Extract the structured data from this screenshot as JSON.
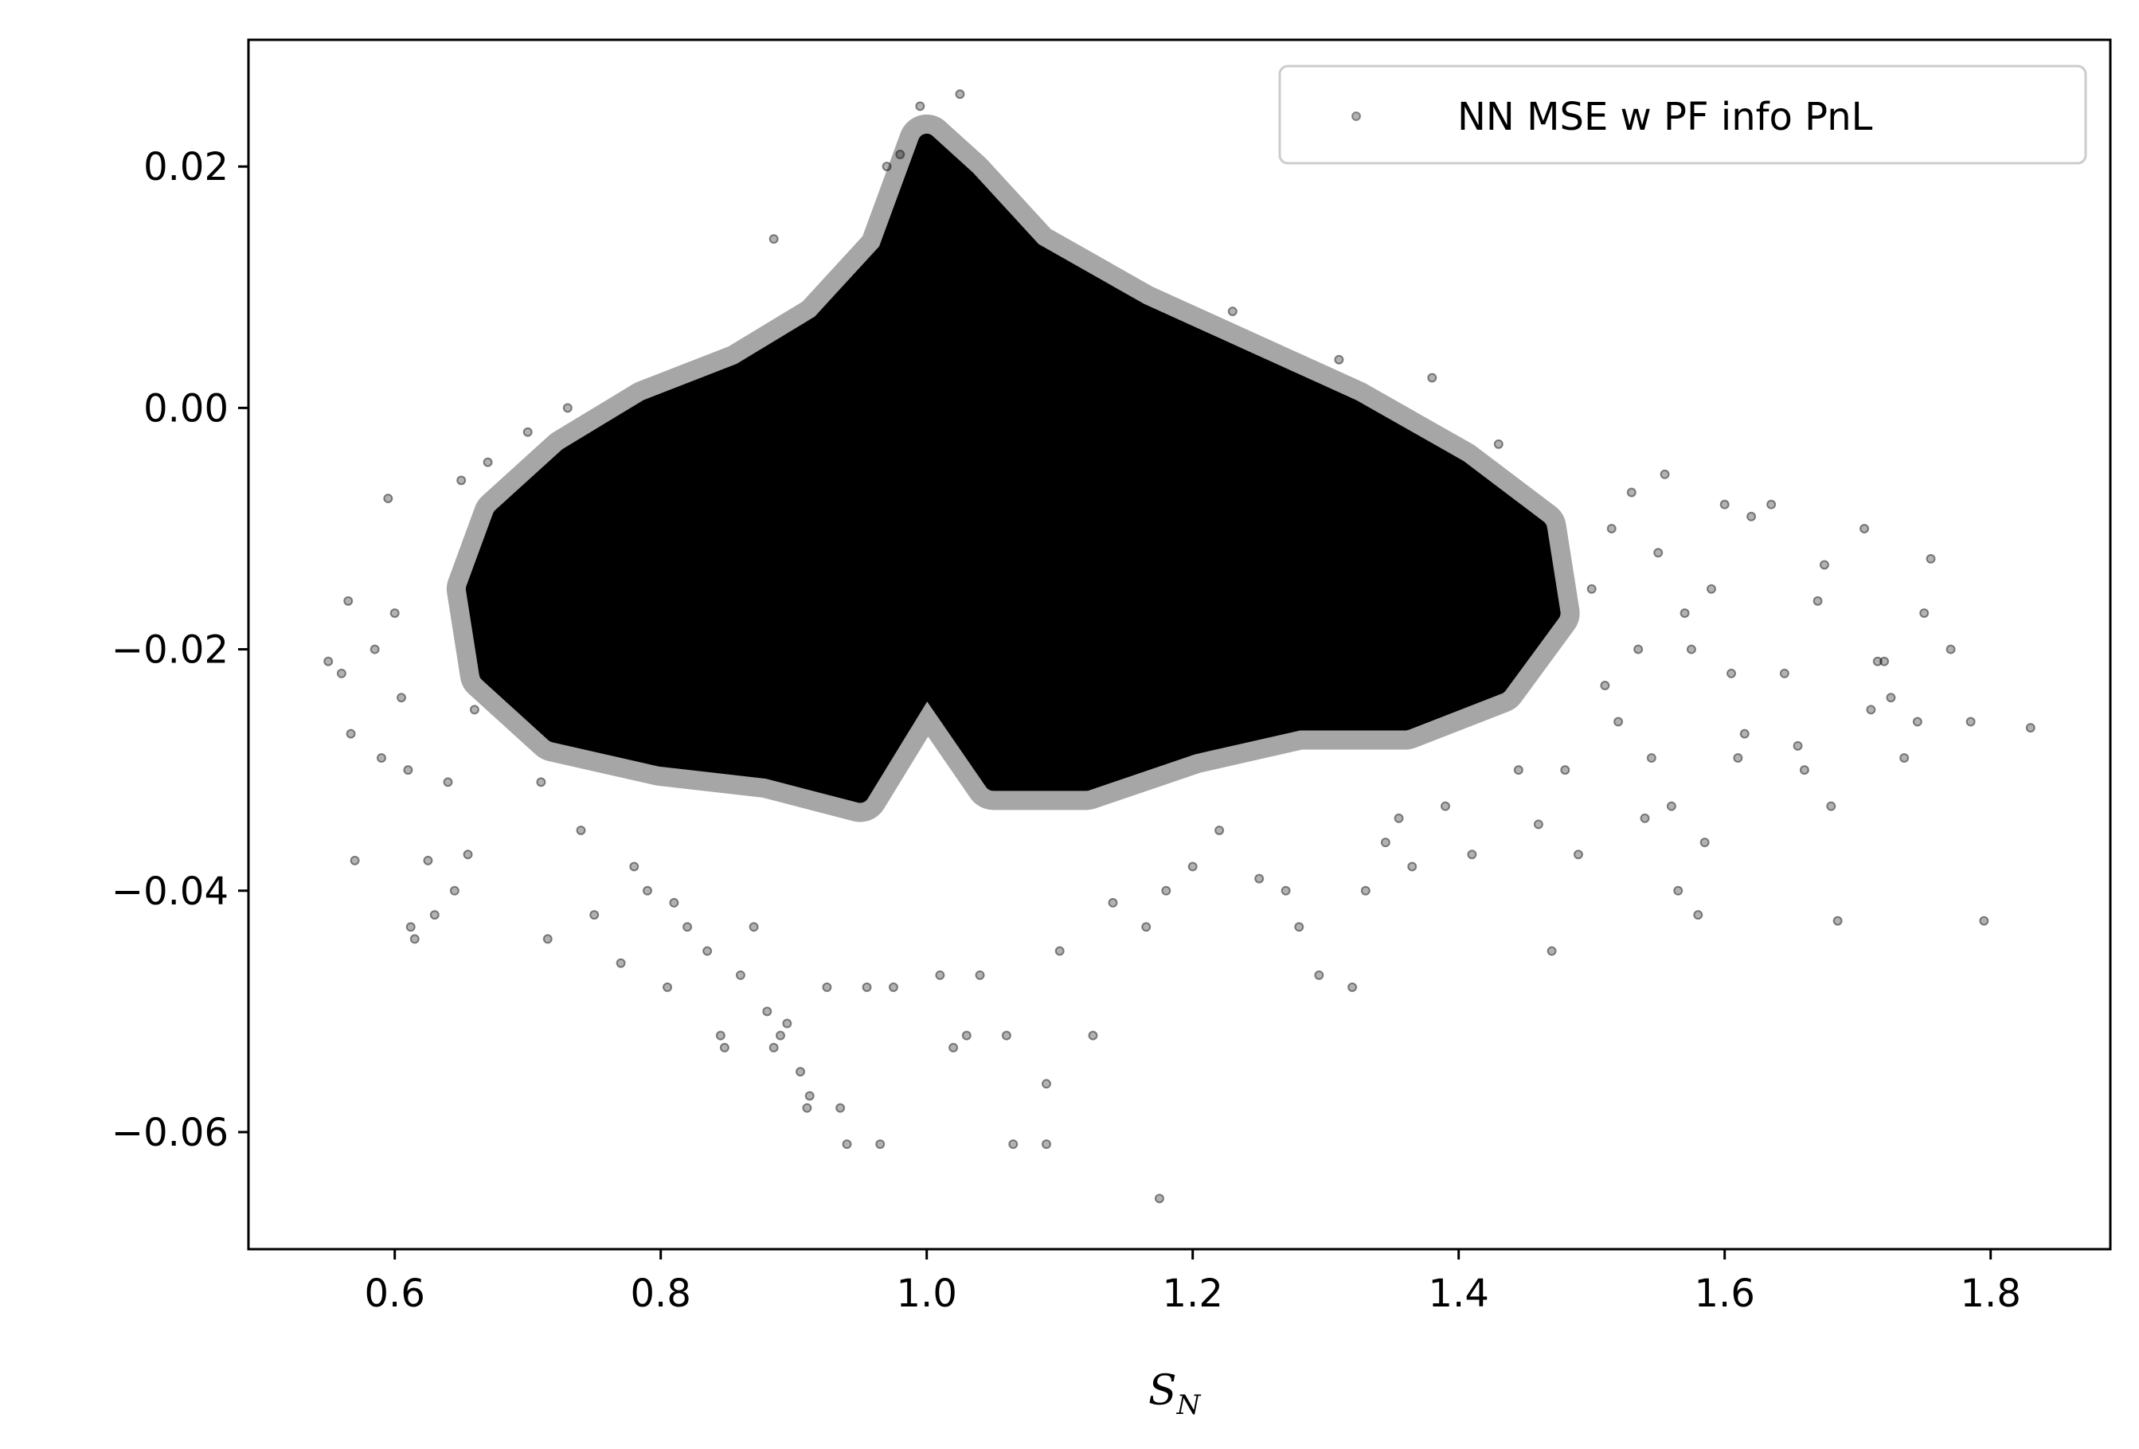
{
  "chart_data": {
    "type": "scatter",
    "xlabel": "S",
    "xlabel_subscript": "N",
    "ylabel": "",
    "title": "",
    "xlim": [
      0.49,
      1.89
    ],
    "ylim": [
      -0.0697,
      0.0305
    ],
    "grid": false,
    "legend_position": "top-right",
    "x_ticks": [
      0.6,
      0.8,
      1.0,
      1.2,
      1.4,
      1.6,
      1.8
    ],
    "x_tick_labels": [
      "0.6",
      "0.8",
      "1.0",
      "1.2",
      "1.4",
      "1.6",
      "1.8"
    ],
    "y_ticks": [
      0.02,
      0.0,
      -0.02,
      -0.04,
      -0.06
    ],
    "y_tick_labels": [
      "0.02",
      "0.00",
      "−0.02",
      "−0.04",
      "−0.06"
    ],
    "marker_color": "#000000",
    "series": [
      {
        "name": "NN MSE w PF info PnL",
        "dense_core": [
          [
            1.0,
            0.022
          ],
          [
            0.97,
            0.013
          ],
          [
            0.92,
            0.007
          ],
          [
            0.86,
            0.003
          ],
          [
            0.79,
            0.0
          ],
          [
            0.73,
            -0.004
          ],
          [
            0.68,
            -0.009
          ],
          [
            0.66,
            -0.015
          ],
          [
            0.67,
            -0.022
          ],
          [
            0.72,
            -0.027
          ],
          [
            0.8,
            -0.029
          ],
          [
            0.88,
            -0.03
          ],
          [
            0.95,
            -0.032
          ],
          [
            1.0,
            -0.023
          ],
          [
            1.05,
            -0.031
          ],
          [
            1.12,
            -0.031
          ],
          [
            1.2,
            -0.028
          ],
          [
            1.28,
            -0.026
          ],
          [
            1.36,
            -0.026
          ],
          [
            1.43,
            -0.023
          ],
          [
            1.47,
            -0.017
          ],
          [
            1.46,
            -0.01
          ],
          [
            1.4,
            -0.005
          ],
          [
            1.32,
            0.0
          ],
          [
            1.24,
            0.004
          ],
          [
            1.16,
            0.008
          ],
          [
            1.08,
            0.013
          ],
          [
            1.03,
            0.019
          ]
        ],
        "points": [
          [
            0.55,
            -0.021
          ],
          [
            0.56,
            -0.022
          ],
          [
            0.565,
            -0.016
          ],
          [
            0.567,
            -0.027
          ],
          [
            0.57,
            -0.0375
          ],
          [
            0.585,
            -0.02
          ],
          [
            0.59,
            -0.029
          ],
          [
            0.595,
            -0.0075
          ],
          [
            0.6,
            -0.017
          ],
          [
            0.605,
            -0.024
          ],
          [
            0.61,
            -0.03
          ],
          [
            0.612,
            -0.043
          ],
          [
            0.615,
            -0.044
          ],
          [
            0.63,
            -0.042
          ],
          [
            0.625,
            -0.0375
          ],
          [
            0.64,
            -0.031
          ],
          [
            0.645,
            -0.04
          ],
          [
            0.655,
            -0.037
          ],
          [
            0.65,
            -0.006
          ],
          [
            0.66,
            -0.025
          ],
          [
            0.67,
            -0.0045
          ],
          [
            0.7,
            -0.002
          ],
          [
            0.71,
            -0.031
          ],
          [
            0.715,
            -0.044
          ],
          [
            0.73,
            -0.0
          ],
          [
            0.74,
            -0.035
          ],
          [
            0.75,
            -0.042
          ],
          [
            0.77,
            -0.046
          ],
          [
            0.78,
            -0.038
          ],
          [
            0.79,
            -0.04
          ],
          [
            0.805,
            -0.048
          ],
          [
            0.81,
            -0.041
          ],
          [
            0.82,
            -0.043
          ],
          [
            0.835,
            -0.045
          ],
          [
            0.845,
            -0.052
          ],
          [
            0.848,
            -0.053
          ],
          [
            0.86,
            -0.047
          ],
          [
            0.87,
            -0.043
          ],
          [
            0.88,
            -0.05
          ],
          [
            0.885,
            -0.053
          ],
          [
            0.89,
            -0.052
          ],
          [
            0.895,
            -0.051
          ],
          [
            0.885,
            0.014
          ],
          [
            0.905,
            -0.055
          ],
          [
            0.91,
            -0.058
          ],
          [
            0.912,
            -0.057
          ],
          [
            0.925,
            -0.048
          ],
          [
            0.935,
            -0.058
          ],
          [
            0.94,
            -0.061
          ],
          [
            0.955,
            -0.048
          ],
          [
            0.965,
            -0.061
          ],
          [
            0.975,
            -0.048
          ],
          [
            0.97,
            0.02
          ],
          [
            0.98,
            0.021
          ],
          [
            0.995,
            0.025
          ],
          [
            1.025,
            0.026
          ],
          [
            1.01,
            -0.047
          ],
          [
            1.02,
            -0.053
          ],
          [
            1.03,
            -0.052
          ],
          [
            1.04,
            -0.047
          ],
          [
            1.06,
            -0.052
          ],
          [
            1.065,
            -0.061
          ],
          [
            1.09,
            -0.056
          ],
          [
            1.09,
            -0.061
          ],
          [
            1.1,
            -0.045
          ],
          [
            1.125,
            -0.052
          ],
          [
            1.14,
            -0.041
          ],
          [
            1.165,
            -0.043
          ],
          [
            1.175,
            -0.0655
          ],
          [
            1.18,
            -0.04
          ],
          [
            1.2,
            -0.038
          ],
          [
            1.22,
            -0.035
          ],
          [
            1.23,
            0.008
          ],
          [
            1.25,
            -0.039
          ],
          [
            1.27,
            -0.04
          ],
          [
            1.28,
            -0.043
          ],
          [
            1.295,
            -0.047
          ],
          [
            1.31,
            0.004
          ],
          [
            1.32,
            -0.048
          ],
          [
            1.33,
            -0.04
          ],
          [
            1.345,
            -0.036
          ],
          [
            1.355,
            -0.034
          ],
          [
            1.365,
            -0.038
          ],
          [
            1.38,
            0.0025
          ],
          [
            1.39,
            -0.033
          ],
          [
            1.41,
            -0.037
          ],
          [
            1.43,
            -0.003
          ],
          [
            1.445,
            -0.03
          ],
          [
            1.46,
            -0.0345
          ],
          [
            1.47,
            -0.045
          ],
          [
            1.48,
            -0.03
          ],
          [
            1.49,
            -0.037
          ],
          [
            1.5,
            -0.015
          ],
          [
            1.51,
            -0.023
          ],
          [
            1.515,
            -0.01
          ],
          [
            1.52,
            -0.026
          ],
          [
            1.53,
            -0.007
          ],
          [
            1.535,
            -0.02
          ],
          [
            1.54,
            -0.034
          ],
          [
            1.545,
            -0.029
          ],
          [
            1.55,
            -0.012
          ],
          [
            1.555,
            -0.0055
          ],
          [
            1.56,
            -0.033
          ],
          [
            1.565,
            -0.04
          ],
          [
            1.57,
            -0.017
          ],
          [
            1.575,
            -0.02
          ],
          [
            1.58,
            -0.042
          ],
          [
            1.585,
            -0.036
          ],
          [
            1.59,
            -0.015
          ],
          [
            1.6,
            -0.008
          ],
          [
            1.605,
            -0.022
          ],
          [
            1.61,
            -0.029
          ],
          [
            1.615,
            -0.027
          ],
          [
            1.62,
            -0.009
          ],
          [
            1.635,
            -0.008
          ],
          [
            1.645,
            -0.022
          ],
          [
            1.655,
            -0.028
          ],
          [
            1.66,
            -0.03
          ],
          [
            1.67,
            -0.016
          ],
          [
            1.675,
            -0.013
          ],
          [
            1.68,
            -0.033
          ],
          [
            1.685,
            -0.0425
          ],
          [
            1.705,
            -0.01
          ],
          [
            1.71,
            -0.025
          ],
          [
            1.715,
            -0.021
          ],
          [
            1.72,
            -0.021
          ],
          [
            1.725,
            -0.024
          ],
          [
            1.735,
            -0.029
          ],
          [
            1.745,
            -0.026
          ],
          [
            1.75,
            -0.017
          ],
          [
            1.755,
            -0.0125
          ],
          [
            1.77,
            -0.02
          ],
          [
            1.785,
            -0.026
          ],
          [
            1.795,
            -0.0425
          ],
          [
            1.83,
            -0.0265
          ]
        ]
      }
    ]
  }
}
